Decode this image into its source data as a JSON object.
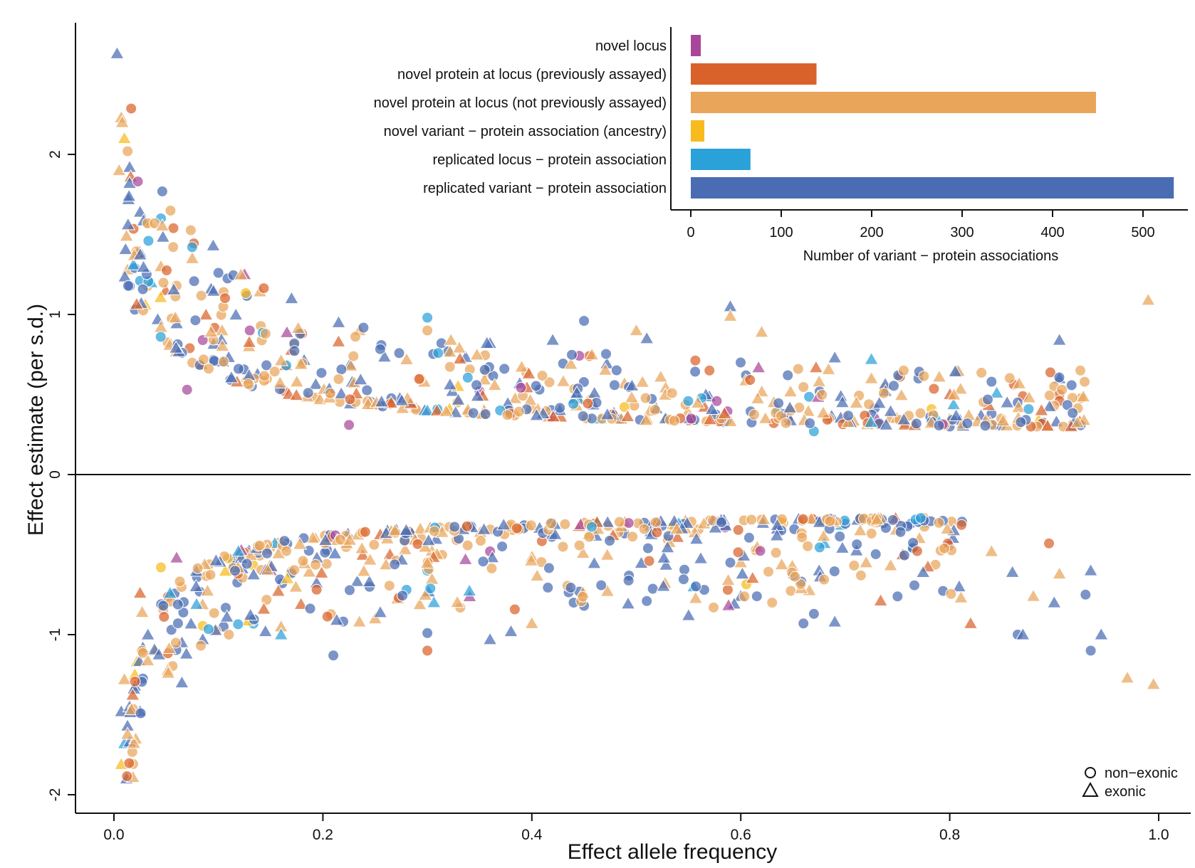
{
  "chart_data": [
    {
      "type": "scatter",
      "title": "",
      "xlabel": "Effect allele frequency",
      "ylabel": "Effect estimate (per s.d.)",
      "xlim": [
        -0.035,
        1.03
      ],
      "ylim": [
        -2.1,
        2.8
      ],
      "x_ticks": [
        0,
        0.2,
        0.4,
        0.6,
        0.8,
        1.0
      ],
      "x_tick_labels": [
        "0.0",
        "0.2",
        "0.4",
        "0.6",
        "0.8",
        "1.0"
      ],
      "y_ticks": [
        -2,
        -1,
        0,
        1,
        2
      ],
      "y_tick_labels": [
        "-2",
        "-1",
        "0",
        "1",
        "2"
      ],
      "zero_line": true,
      "legend": {
        "placement": "bottom-right",
        "entries": [
          {
            "label": "non−exonic",
            "shape": "circle"
          },
          {
            "label": "exonic",
            "shape": "triangle"
          }
        ]
      },
      "color_categories": [
        {
          "key": "nl",
          "label": "novel locus",
          "color": "#a8479a"
        },
        {
          "key": "npp",
          "label": "novel protein at locus (previously assayed)",
          "color": "#d9622b"
        },
        {
          "key": "npn",
          "label": "novel protein at locus (not previously assayed)",
          "color": "#e9a55a"
        },
        {
          "key": "nva",
          "label": "novel variant − protein association (ancestry)",
          "color": "#f7bb1e"
        },
        {
          "key": "rl",
          "label": "replicated locus − protein association",
          "color": "#2aa1d9"
        },
        {
          "key": "rv",
          "label": "replicated variant − protein association",
          "color": "#4a6cb3"
        }
      ],
      "note_points": "series are generated deterministically in script",
      "points": [
        [
          0.003,
          2.63,
          "rv",
          "tri"
        ],
        [
          0.007,
          2.23,
          "npn",
          "tri"
        ],
        [
          0.008,
          2.2,
          "npn",
          "tri"
        ],
        [
          0.01,
          2.1,
          "nva",
          "tri"
        ],
        [
          0.005,
          1.9,
          "npn",
          "tri"
        ],
        [
          0.015,
          1.92,
          "rv",
          "tri"
        ],
        [
          0.016,
          1.86,
          "npp",
          "tri"
        ],
        [
          0.015,
          1.82,
          "rv",
          "tri"
        ],
        [
          0.025,
          1.64,
          "rv",
          "tri"
        ],
        [
          0.045,
          1.6,
          "rl",
          "circ"
        ],
        [
          0.033,
          1.46,
          "rl",
          "circ"
        ],
        [
          0.012,
          1.49,
          "npn",
          "tri"
        ],
        [
          0.013,
          1.28,
          "npn",
          "tri"
        ],
        [
          0.025,
          1.39,
          "rv",
          "tri"
        ],
        [
          0.02,
          1.29,
          "rv",
          "circ"
        ],
        [
          0.095,
          1.43,
          "rv",
          "tri"
        ],
        [
          0.1,
          1.26,
          "rv",
          "circ"
        ],
        [
          0.125,
          1.25,
          "nl",
          "tri"
        ],
        [
          0.075,
          1.35,
          "npn",
          "tri"
        ],
        [
          0.045,
          1.3,
          "npn",
          "tri"
        ],
        [
          0.06,
          1.18,
          "npn",
          "circ"
        ],
        [
          0.025,
          1.21,
          "rl",
          "circ"
        ],
        [
          0.093,
          1.16,
          "rv",
          "tri"
        ],
        [
          0.105,
          1.14,
          "npn",
          "circ"
        ],
        [
          0.03,
          1.06,
          "nva",
          "tri"
        ],
        [
          0.02,
          1.03,
          "rv",
          "circ"
        ],
        [
          0.085,
          0.84,
          "nl",
          "circ"
        ],
        [
          0.17,
          1.1,
          "rv",
          "tri"
        ],
        [
          0.3,
          0.98,
          "rl",
          "circ"
        ],
        [
          0.3,
          0.9,
          "npn",
          "circ"
        ],
        [
          0.45,
          0.96,
          "rv",
          "circ"
        ],
        [
          0.59,
          1.05,
          "rv",
          "tri"
        ],
        [
          0.59,
          0.99,
          "npn",
          "tri"
        ],
        [
          0.62,
          0.89,
          "npn",
          "tri"
        ],
        [
          0.99,
          1.09,
          "npn",
          "tri"
        ],
        [
          0.905,
          0.84,
          "rv",
          "tri"
        ],
        [
          0.18,
          0.88,
          "npp",
          "circ"
        ],
        [
          0.13,
          0.9,
          "nl",
          "circ"
        ],
        [
          0.5,
          0.9,
          "npn",
          "tri"
        ],
        [
          0.51,
          0.85,
          "rv",
          "tri"
        ],
        [
          0.42,
          0.84,
          "rv",
          "tri"
        ],
        [
          0.36,
          0.82,
          "rv",
          "tri"
        ],
        [
          0.215,
          0.83,
          "npp",
          "tri"
        ],
        [
          0.235,
          0.9,
          "npn",
          "tri"
        ],
        [
          0.32,
          0.77,
          "rv",
          "circ"
        ],
        [
          0.455,
          0.74,
          "npp",
          "circ"
        ],
        [
          0.69,
          0.73,
          "rv",
          "tri"
        ],
        [
          0.725,
          0.72,
          "rl",
          "tri"
        ],
        [
          0.57,
          0.65,
          "npp",
          "circ"
        ],
        [
          0.605,
          0.62,
          "rv",
          "circ"
        ],
        [
          0.645,
          0.62,
          "rv",
          "circ"
        ],
        [
          0.675,
          0.58,
          "npn",
          "tri"
        ],
        [
          0.725,
          0.6,
          "npn",
          "tri"
        ],
        [
          0.79,
          0.61,
          "npn",
          "tri"
        ],
        [
          0.77,
          0.6,
          "rv",
          "circ"
        ],
        [
          0.84,
          0.58,
          "rv",
          "circ"
        ],
        [
          0.845,
          0.51,
          "rl",
          "tri"
        ],
        [
          0.925,
          0.65,
          "npn",
          "circ"
        ],
        [
          0.905,
          0.6,
          "rv",
          "tri"
        ],
        [
          0.9,
          0.55,
          "npn",
          "circ"
        ],
        [
          0.905,
          0.5,
          "npp",
          "circ"
        ],
        [
          0.905,
          0.46,
          "npp",
          "circ"
        ],
        [
          0.9,
          0.43,
          "npn",
          "circ"
        ],
        [
          0.87,
          0.49,
          "npp",
          "circ"
        ],
        [
          0.865,
          0.45,
          "rv",
          "circ"
        ],
        [
          0.84,
          0.38,
          "rv",
          "circ"
        ],
        [
          0.645,
          0.35,
          "nl",
          "circ"
        ],
        [
          0.67,
          0.27,
          "rl",
          "circ"
        ],
        [
          0.635,
          0.4,
          "rl",
          "circ"
        ],
        [
          0.8,
          0.3,
          "rv",
          "circ"
        ],
        [
          0.81,
          0.34,
          "rv",
          "tri"
        ],
        [
          0.83,
          0.37,
          "rv",
          "tri"
        ],
        [
          0.35,
          0.52,
          "nl",
          "circ"
        ],
        [
          0.07,
          0.53,
          "nl",
          "circ"
        ],
        [
          0.225,
          0.31,
          "nl",
          "circ"
        ],
        [
          0.012,
          -1.9,
          "rv",
          "tri"
        ],
        [
          0.007,
          -1.81,
          "nva",
          "tri"
        ],
        [
          0.01,
          -1.68,
          "rl",
          "tri"
        ],
        [
          0.015,
          -1.67,
          "rv",
          "tri"
        ],
        [
          0.013,
          -1.57,
          "rv",
          "tri"
        ],
        [
          0.007,
          -1.48,
          "rv",
          "tri"
        ],
        [
          0.015,
          -1.45,
          "rv",
          "tri"
        ],
        [
          0.025,
          -1.48,
          "rv",
          "tri"
        ],
        [
          0.01,
          -1.28,
          "npn",
          "tri"
        ],
        [
          0.02,
          -1.32,
          "rv",
          "tri"
        ],
        [
          0.02,
          -1.25,
          "nva",
          "tri"
        ],
        [
          0.022,
          -1.17,
          "nva",
          "tri"
        ],
        [
          0.065,
          -1.3,
          "rv",
          "tri"
        ],
        [
          0.21,
          -1.13,
          "rv",
          "circ"
        ],
        [
          0.3,
          -1.1,
          "npp",
          "circ"
        ],
        [
          0.3,
          -0.99,
          "rv",
          "circ"
        ],
        [
          0.36,
          -1.03,
          "rv",
          "tri"
        ],
        [
          0.38,
          -0.98,
          "rv",
          "tri"
        ],
        [
          0.4,
          -0.93,
          "npn",
          "tri"
        ],
        [
          0.235,
          -0.92,
          "npn",
          "tri"
        ],
        [
          0.25,
          -0.9,
          "npn",
          "tri"
        ],
        [
          0.16,
          -0.95,
          "npn",
          "tri"
        ],
        [
          0.16,
          -1.0,
          "rl",
          "tri"
        ],
        [
          0.145,
          -0.98,
          "rv",
          "tri"
        ],
        [
          0.105,
          -0.95,
          "rv",
          "circ"
        ],
        [
          0.11,
          -1.0,
          "npn",
          "circ"
        ],
        [
          0.085,
          -1.03,
          "rv",
          "tri"
        ],
        [
          0.065,
          -1.05,
          "rv",
          "tri"
        ],
        [
          0.04,
          -1.1,
          "npn",
          "tri"
        ],
        [
          0.055,
          -0.97,
          "rv",
          "circ"
        ],
        [
          0.44,
          -0.8,
          "rv",
          "circ"
        ],
        [
          0.45,
          -0.82,
          "rv",
          "circ"
        ],
        [
          0.51,
          -0.79,
          "rv",
          "circ"
        ],
        [
          0.55,
          -0.88,
          "rv",
          "tri"
        ],
        [
          0.6,
          -0.76,
          "rv",
          "tri"
        ],
        [
          0.63,
          -0.8,
          "npn",
          "circ"
        ],
        [
          0.66,
          -0.93,
          "rv",
          "circ"
        ],
        [
          0.67,
          -0.87,
          "rv",
          "circ"
        ],
        [
          0.69,
          -0.92,
          "rv",
          "tri"
        ],
        [
          0.82,
          -0.93,
          "npp",
          "tri"
        ],
        [
          0.865,
          -1.0,
          "rv",
          "circ"
        ],
        [
          0.87,
          -1.0,
          "rv",
          "tri"
        ],
        [
          0.88,
          -0.76,
          "npn",
          "tri"
        ],
        [
          0.9,
          -0.8,
          "rv",
          "tri"
        ],
        [
          0.93,
          -0.75,
          "rv",
          "circ"
        ],
        [
          0.935,
          -1.1,
          "rv",
          "circ"
        ],
        [
          0.945,
          -1.0,
          "rv",
          "tri"
        ],
        [
          0.97,
          -1.27,
          "npn",
          "tri"
        ],
        [
          0.995,
          -1.31,
          "npn",
          "tri"
        ],
        [
          0.935,
          -0.6,
          "rv",
          "tri"
        ],
        [
          0.905,
          -0.62,
          "npn",
          "tri"
        ],
        [
          0.895,
          -0.43,
          "npp",
          "circ"
        ],
        [
          0.86,
          -0.61,
          "rv",
          "tri"
        ],
        [
          0.84,
          -0.48,
          "npn",
          "tri"
        ],
        [
          0.775,
          -0.3,
          "rl",
          "tri"
        ],
        [
          0.765,
          -0.45,
          "rl",
          "tri"
        ],
        [
          0.755,
          -0.5,
          "npp",
          "tri"
        ],
        [
          0.68,
          -0.43,
          "rl",
          "tri"
        ],
        [
          0.675,
          -0.6,
          "rv",
          "tri"
        ],
        [
          0.715,
          -0.63,
          "npn",
          "circ"
        ],
        [
          0.72,
          -0.55,
          "npn",
          "tri"
        ],
        [
          0.65,
          -0.63,
          "rv",
          "circ"
        ],
        [
          0.59,
          -0.55,
          "rv",
          "circ"
        ],
        [
          0.6,
          -0.55,
          "npn",
          "tri"
        ],
        [
          0.555,
          -0.7,
          "rl",
          "tri"
        ],
        [
          0.565,
          -0.72,
          "rv",
          "circ"
        ],
        [
          0.585,
          -0.33,
          "nl",
          "circ"
        ],
        [
          0.36,
          -0.48,
          "nl",
          "circ"
        ],
        [
          0.3,
          -0.6,
          "rl",
          "circ"
        ],
        [
          0.28,
          -0.72,
          "rl",
          "circ"
        ],
        [
          0.06,
          -0.52,
          "nl",
          "tri"
        ],
        [
          0.15,
          -0.6,
          "nl",
          "tri"
        ],
        [
          0.025,
          -0.74,
          "npp",
          "tri"
        ],
        [
          0.027,
          -0.86,
          "npn",
          "tri"
        ],
        [
          0.045,
          -0.58,
          "nva",
          "circ"
        ]
      ]
    },
    {
      "type": "bar",
      "orientation": "horizontal",
      "title": "",
      "xlabel": "Number of variant − protein associations",
      "ylabel": "",
      "xlim": [
        -22,
        555
      ],
      "x_ticks": [
        0,
        100,
        200,
        300,
        400,
        500
      ],
      "x_tick_labels": [
        "0",
        "100",
        "200",
        "300",
        "400",
        "500"
      ],
      "categories": [
        "novel locus",
        "novel protein at locus (previously assayed)",
        "novel protein at locus (not previously assayed)",
        "novel variant − protein association (ancestry)",
        "replicated locus − protein association",
        "replicated variant − protein association"
      ],
      "values": [
        11,
        139,
        448,
        15,
        66,
        534
      ],
      "colors": [
        "#a8479a",
        "#d9622b",
        "#e9a55a",
        "#f7bb1e",
        "#2aa1d9",
        "#4a6cb3"
      ]
    }
  ]
}
